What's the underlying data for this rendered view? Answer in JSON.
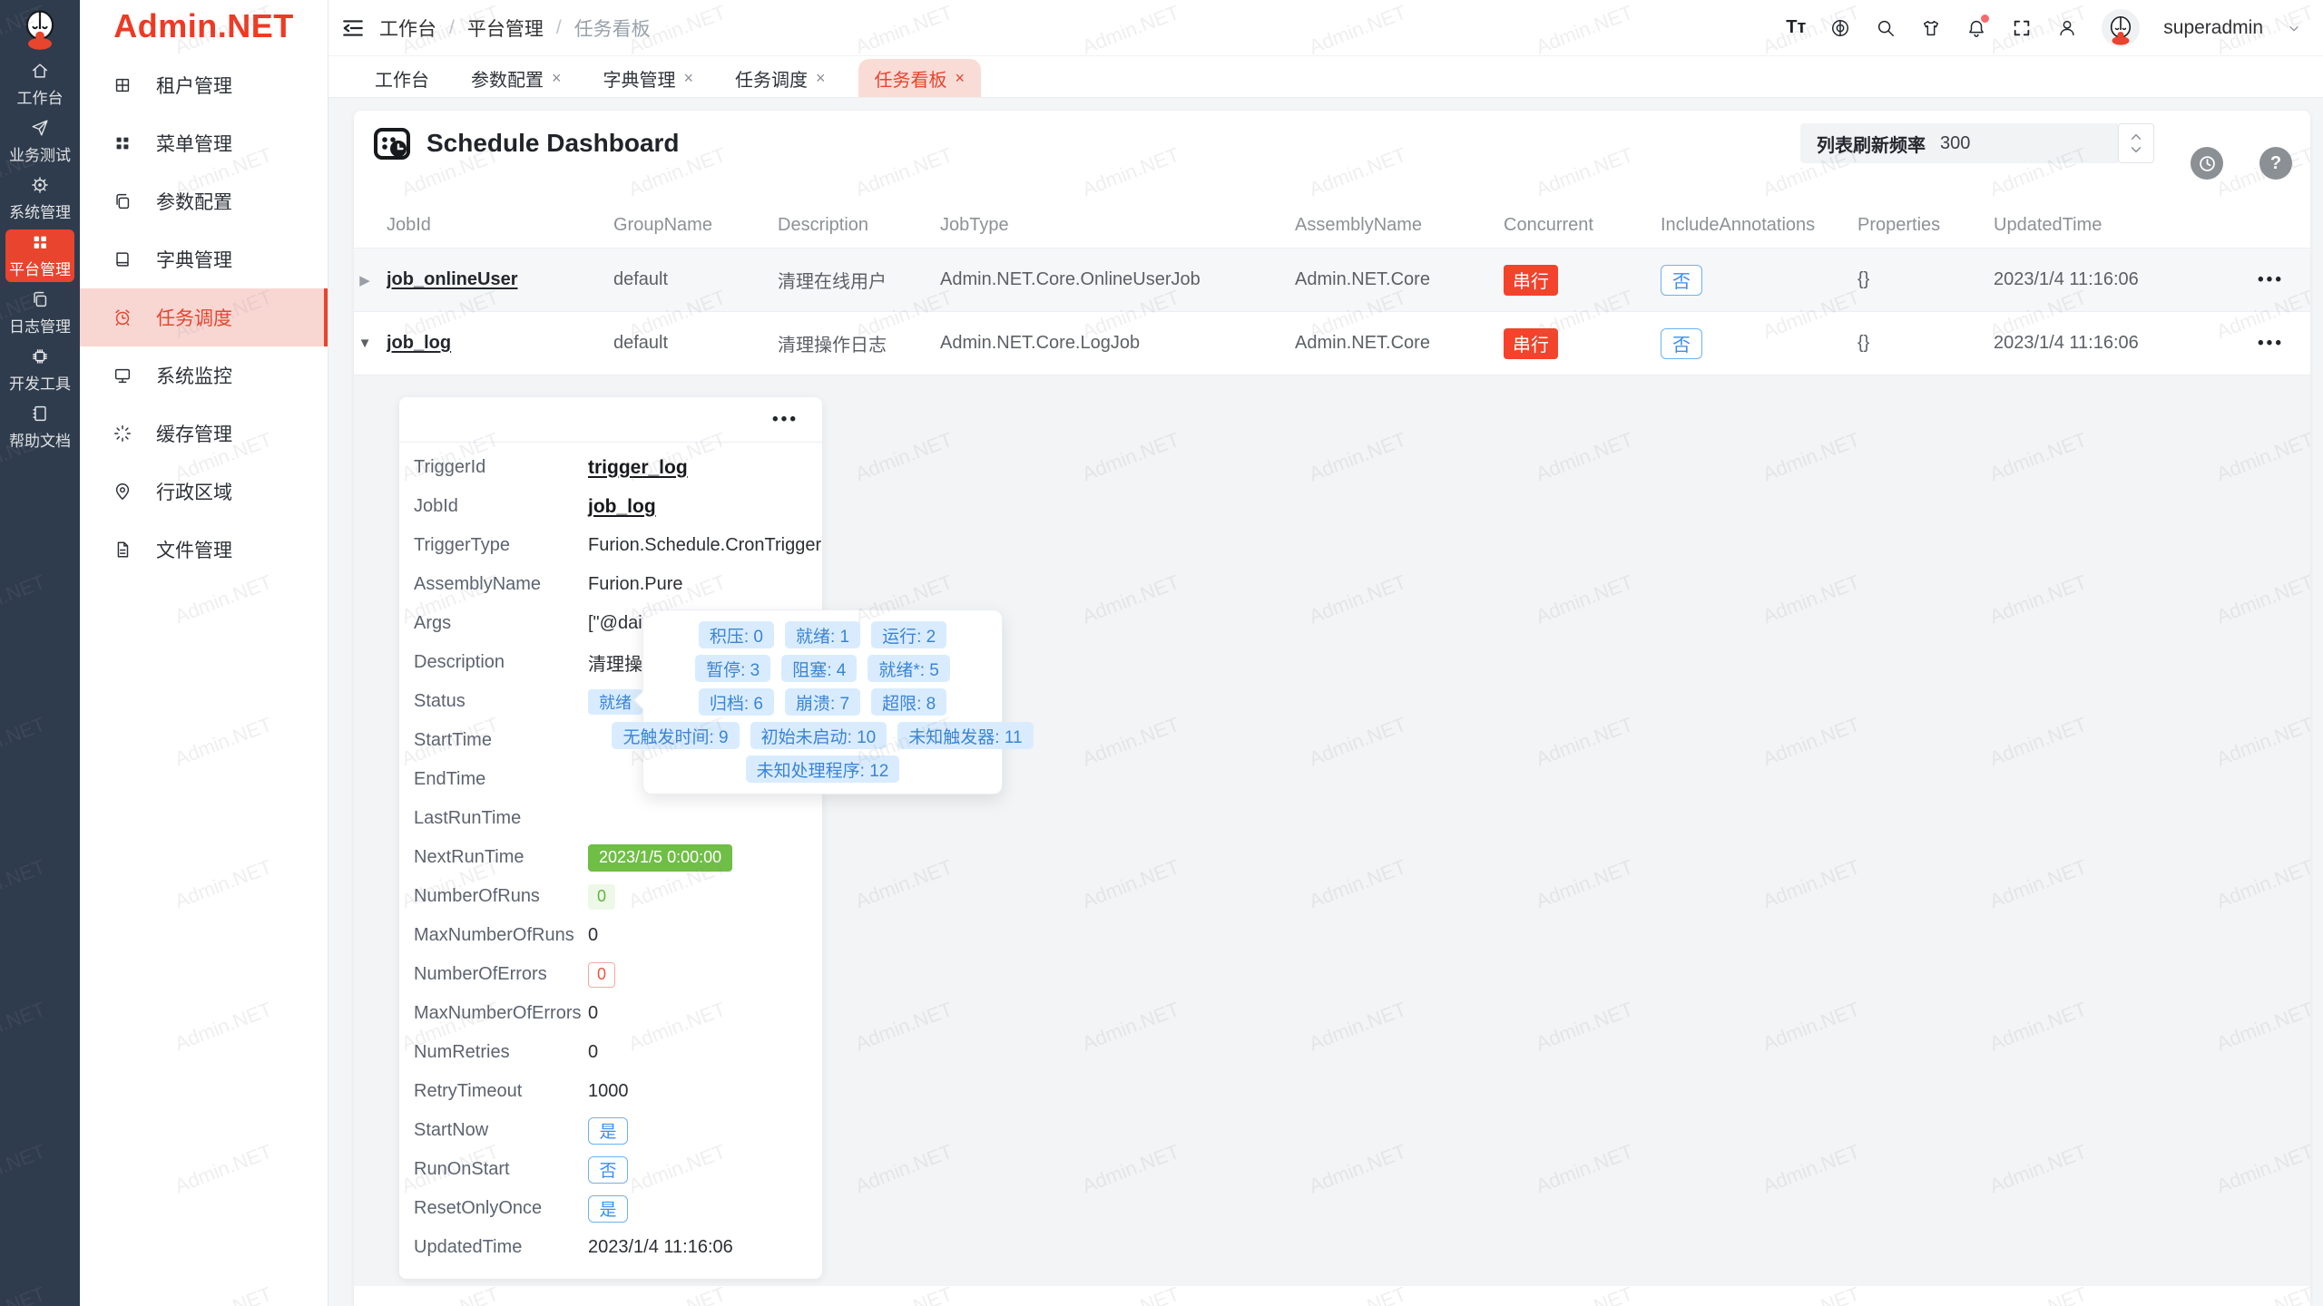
{
  "watermark_text": "Admin.NET",
  "colors": {
    "accent_red": "#e8442e",
    "rail_bg": "#2f3c4d",
    "badge_blue_bg": "#d9ecff",
    "badge_blue_text": "#3a84d6",
    "badge_green": "#6fbe45",
    "badge_serial_red": "#f3432b"
  },
  "icons": {
    "close": "×",
    "expand_closed": "▶",
    "expand_open": "▼",
    "more": "•••",
    "font_size": "Tт",
    "help": "?"
  },
  "rail": {
    "items": [
      {
        "label": "工作台"
      },
      {
        "label": "业务测试"
      },
      {
        "label": "系统管理"
      },
      {
        "label": "平台管理",
        "active": true
      },
      {
        "label": "日志管理"
      },
      {
        "label": "开发工具"
      },
      {
        "label": "帮助文档"
      }
    ]
  },
  "sidebar": {
    "brand": "Admin.NET",
    "items": [
      {
        "label": "租户管理"
      },
      {
        "label": "菜单管理"
      },
      {
        "label": "参数配置"
      },
      {
        "label": "字典管理"
      },
      {
        "label": "任务调度",
        "active": true
      },
      {
        "label": "系统监控"
      },
      {
        "label": "缓存管理"
      },
      {
        "label": "行政区域"
      },
      {
        "label": "文件管理"
      }
    ]
  },
  "header": {
    "breadcrumb": [
      "工作台",
      "平台管理",
      "任务看板"
    ],
    "user": "superadmin"
  },
  "tabs": [
    {
      "label": "工作台",
      "closable": false
    },
    {
      "label": "参数配置",
      "closable": true
    },
    {
      "label": "字典管理",
      "closable": true
    },
    {
      "label": "任务调度",
      "closable": true
    },
    {
      "label": "任务看板",
      "closable": true,
      "active": true
    }
  ],
  "toolbar": {
    "title": "Schedule Dashboard",
    "refresh_label": "列表刷新频率",
    "refresh_value": "300"
  },
  "table": {
    "columns": [
      "JobId",
      "GroupName",
      "Description",
      "JobType",
      "AssemblyName",
      "Concurrent",
      "IncludeAnnotations",
      "Properties",
      "UpdatedTime"
    ],
    "rows": [
      {
        "jobId": "job_onlineUser",
        "group": "default",
        "desc": "清理在线用户",
        "type": "Admin.NET.Core.OnlineUserJob",
        "assembly": "Admin.NET.Core",
        "concurrent": "串行",
        "include": "否",
        "props": "{}",
        "updated": "2023/1/4 11:16:06"
      },
      {
        "jobId": "job_log",
        "group": "default",
        "desc": "清理操作日志",
        "type": "Admin.NET.Core.LogJob",
        "assembly": "Admin.NET.Core",
        "concurrent": "串行",
        "include": "否",
        "props": "{}",
        "updated": "2023/1/4 11:16:06"
      }
    ]
  },
  "detail": {
    "fields": [
      {
        "label": "TriggerId",
        "value": "trigger_log"
      },
      {
        "label": "JobId",
        "value": "job_log"
      },
      {
        "label": "TriggerType",
        "value": "Furion.Schedule.CronTrigger"
      },
      {
        "label": "AssemblyName",
        "value": "Furion.Pure"
      },
      {
        "label": "Args",
        "value": "[\"@daily"
      },
      {
        "label": "Description",
        "value": "清理操作日志"
      },
      {
        "label": "Status",
        "value": "就绪"
      },
      {
        "label": "StartTime",
        "value": ""
      },
      {
        "label": "EndTime",
        "value": ""
      },
      {
        "label": "LastRunTime",
        "value": ""
      },
      {
        "label": "NextRunTime",
        "value": "2023/1/5 0:00:00"
      },
      {
        "label": "NumberOfRuns",
        "value": "0"
      },
      {
        "label": "MaxNumberOfRuns",
        "value": "0"
      },
      {
        "label": "NumberOfErrors",
        "value": "0"
      },
      {
        "label": "MaxNumberOfErrors",
        "value": "0"
      },
      {
        "label": "NumRetries",
        "value": "0"
      },
      {
        "label": "RetryTimeout",
        "value": "1000"
      },
      {
        "label": "StartNow",
        "value": "是"
      },
      {
        "label": "RunOnStart",
        "value": "否"
      },
      {
        "label": "ResetOnlyOnce",
        "value": "是"
      },
      {
        "label": "UpdatedTime",
        "value": "2023/1/4 11:16:06"
      }
    ]
  },
  "tooltip": {
    "rows": [
      [
        "积压: 0",
        "就绪: 1",
        "运行: 2"
      ],
      [
        "暂停: 3",
        "阻塞: 4",
        "就绪*: 5"
      ],
      [
        "归档: 6",
        "崩溃: 7",
        "超限: 8"
      ],
      [
        "无触发时间: 9",
        "初始未启动: 10",
        "未知触发器: 11"
      ],
      [
        "未知处理程序: 12"
      ]
    ]
  }
}
